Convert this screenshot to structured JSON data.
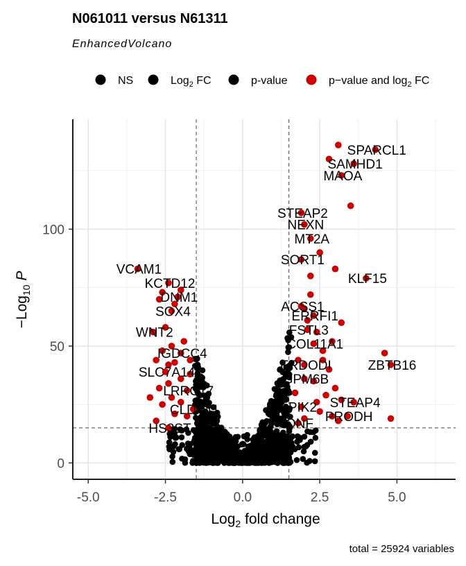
{
  "chart_data": {
    "type": "scatter",
    "title": "N061011 versus N61311",
    "subtitle": "EnhancedVolcano",
    "caption": "total = 25924 variables",
    "xlabel": {
      "main": "Log",
      "sub": "2",
      "rest": " fold change"
    },
    "ylabel": {
      "pre": "−Log",
      "sub": "10",
      "var": " P"
    },
    "xlim": [
      -5.5,
      6.9
    ],
    "ylim": [
      -7,
      147
    ],
    "x_ticks": [
      -5,
      -2.5,
      0,
      2.5,
      5
    ],
    "x_tick_labels": [
      "-5.0",
      "-2.5",
      "0.0",
      "2.5",
      "5.0"
    ],
    "y_ticks": [
      0,
      50,
      100
    ],
    "y_tick_labels": [
      "0",
      "50",
      "100"
    ],
    "fc_cutoff": 1.5,
    "p_cutoff": 15,
    "colors": {
      "ns": "#000000",
      "fc": "#000000",
      "p": "#000000",
      "both": "#cc0000"
    },
    "legend": [
      {
        "label": "NS",
        "color": "#000000"
      },
      {
        "label": "Log",
        "sub": "2",
        "suffix": " FC",
        "color": "#000000"
      },
      {
        "label": "p-value",
        "color": "#000000"
      },
      {
        "label": "p−value and log",
        "sub": "2",
        "suffix": " FC",
        "color": "#cc0000"
      }
    ],
    "highlight_points": [
      {
        "x": 4.3,
        "y": 134,
        "label": "SPARCL1"
      },
      {
        "x": 3.6,
        "y": 128,
        "label": "SAMHD1"
      },
      {
        "x": 3.2,
        "y": 123,
        "label": "MAOA"
      },
      {
        "x": 1.9,
        "y": 107,
        "label": "STEAP2"
      },
      {
        "x": 2.0,
        "y": 102,
        "label": "NEXN"
      },
      {
        "x": 2.2,
        "y": 96,
        "label": "MT2A"
      },
      {
        "x": 1.9,
        "y": 87,
        "label": "SORT1"
      },
      {
        "x": 4.0,
        "y": 79,
        "label": "KLF15"
      },
      {
        "x": 1.9,
        "y": 67,
        "label": "ACSS1"
      },
      {
        "x": 2.3,
        "y": 63,
        "label": "ERRFI1"
      },
      {
        "x": 2.1,
        "y": 57,
        "label": "FSTL3"
      },
      {
        "x": 2.3,
        "y": 51,
        "label": "COL11A1"
      },
      {
        "x": 4.8,
        "y": 42,
        "label": "ZBTB16"
      },
      {
        "x": 2.0,
        "y": 42,
        "label": "ERDODI"
      },
      {
        "x": 2.0,
        "y": 36,
        "label": "GPM6B"
      },
      {
        "x": 3.6,
        "y": 26,
        "label": "STEAP4"
      },
      {
        "x": 3.4,
        "y": 20,
        "label": "PRODH"
      },
      {
        "x": 1.9,
        "y": 24,
        "label": "PIK2"
      },
      {
        "x": 1.8,
        "y": 17,
        "label": "ONF"
      },
      {
        "x": -3.4,
        "y": 83,
        "label": "VCAM1"
      },
      {
        "x": -2.4,
        "y": 77,
        "label": "KCTD12"
      },
      {
        "x": -2.1,
        "y": 71,
        "label": "DNM1"
      },
      {
        "x": -2.3,
        "y": 65,
        "label": "SOX4"
      },
      {
        "x": -2.9,
        "y": 56,
        "label": "WNT2"
      },
      {
        "x": -2.0,
        "y": 47,
        "label": "IGDCC4"
      },
      {
        "x": -2.5,
        "y": 39,
        "label": "SLC7A14"
      },
      {
        "x": -1.8,
        "y": 31,
        "label": "LRRC17"
      },
      {
        "x": -1.6,
        "y": 23,
        "label": "CLDN11"
      },
      {
        "x": -2.4,
        "y": 15,
        "label": "HS3ST"
      }
    ],
    "extra_sig_points": [
      [
        3.1,
        136
      ],
      [
        2.8,
        130
      ],
      [
        3.5,
        110
      ],
      [
        3.0,
        83
      ],
      [
        4.8,
        19
      ],
      [
        4.6,
        47
      ],
      [
        3.2,
        60
      ],
      [
        2.2,
        72
      ],
      [
        2.0,
        66
      ],
      [
        2.4,
        56
      ],
      [
        2.6,
        48
      ],
      [
        2.8,
        40
      ],
      [
        3.0,
        32
      ],
      [
        3.2,
        27
      ],
      [
        2.9,
        20
      ],
      [
        3.1,
        18
      ],
      [
        2.5,
        22
      ],
      [
        2.7,
        29
      ],
      [
        2.3,
        35
      ],
      [
        2.6,
        44
      ],
      [
        2.2,
        80
      ],
      [
        2.5,
        90
      ],
      [
        2.1,
        61
      ],
      [
        2.9,
        52
      ],
      [
        1.7,
        30
      ],
      [
        1.8,
        44
      ],
      [
        2.4,
        26
      ],
      [
        2.0,
        19
      ],
      [
        -2.6,
        73
      ],
      [
        -2.2,
        68
      ],
      [
        -2.0,
        74
      ],
      [
        -2.7,
        70
      ],
      [
        -2.3,
        50
      ],
      [
        -2.6,
        48
      ],
      [
        -2.2,
        43
      ],
      [
        -2.8,
        44
      ],
      [
        -2.4,
        34
      ],
      [
        -2.0,
        36
      ],
      [
        -2.7,
        32
      ],
      [
        -2.3,
        28
      ],
      [
        -2.0,
        26
      ],
      [
        -1.7,
        38
      ],
      [
        -1.8,
        20
      ],
      [
        -2.6,
        25
      ],
      [
        -2.2,
        21
      ],
      [
        -2.8,
        18
      ],
      [
        -1.9,
        52
      ],
      [
        -1.7,
        44
      ],
      [
        -2.5,
        58
      ],
      [
        -3.0,
        28
      ],
      [
        -2.4,
        42
      ]
    ]
  }
}
